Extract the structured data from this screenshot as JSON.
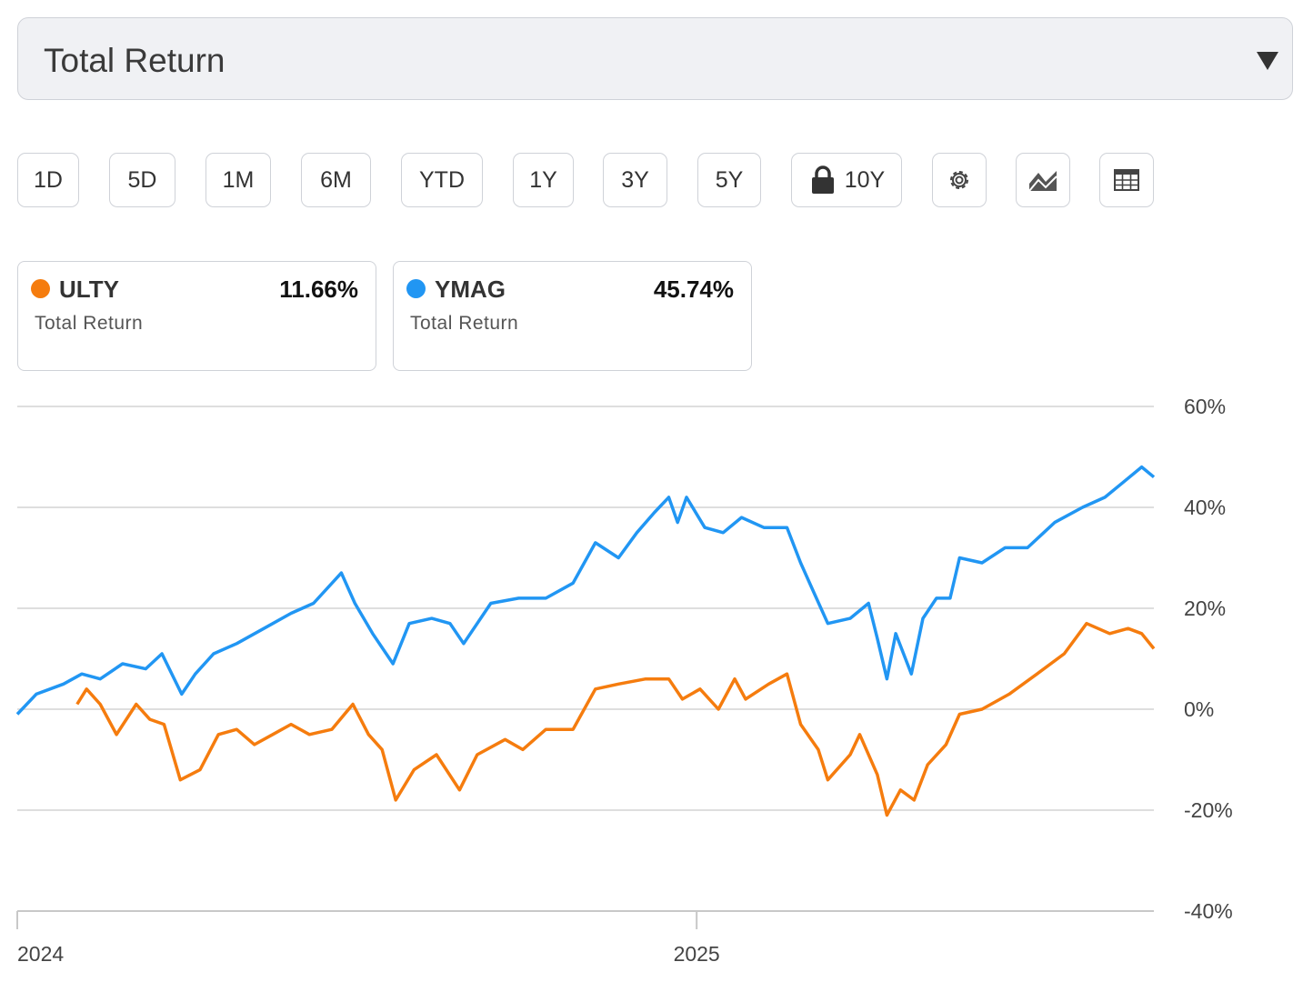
{
  "dropdown": "Total Return",
  "ranges": [
    "1D",
    "5D",
    "1M",
    "6M",
    "YTD",
    "1Y",
    "3Y",
    "5Y",
    "10Y"
  ],
  "chart_data": {
    "type": "line",
    "xlim": [
      2024,
      2025.673
    ],
    "xticks": [
      2024,
      2025
    ],
    "ylim": [
      -40,
      60
    ],
    "yticks": [
      {
        "value": 60,
        "label": "60%"
      },
      {
        "value": 40,
        "label": "40%"
      },
      {
        "value": 20,
        "label": "20%"
      },
      {
        "value": 0,
        "label": "0%"
      },
      {
        "value": -20,
        "label": "-20%"
      },
      {
        "value": -40,
        "label": "-40%"
      }
    ],
    "grid": true,
    "series": [
      {
        "name": "ULTY",
        "color": "#f57c0e",
        "subtitle": "Total Return",
        "summary": {
          "value": 11.66,
          "label": "11.66%"
        },
        "x": [
          2024.088,
          2024.102,
          2024.122,
          2024.146,
          2024.175,
          2024.195,
          2024.216,
          2024.24,
          2024.269,
          2024.296,
          2024.323,
          2024.349,
          2024.376,
          2024.403,
          2024.43,
          2024.463,
          2024.494,
          2024.517,
          2024.537,
          2024.557,
          2024.584,
          2024.617,
          2024.651,
          2024.677,
          2024.718,
          2024.744,
          2024.778,
          2024.818,
          2024.851,
          2024.885,
          2024.925,
          2024.959,
          2024.979,
          2025.005,
          2025.032,
          2025.056,
          2025.072,
          2025.106,
          2025.133,
          2025.153,
          2025.179,
          2025.193,
          2025.226,
          2025.24,
          2025.266,
          2025.28,
          2025.3,
          2025.32,
          2025.34,
          2025.367,
          2025.387,
          2025.42,
          2025.46,
          2025.501,
          2025.541,
          2025.574,
          2025.608,
          2025.635,
          2025.655,
          2025.673
        ],
        "values": [
          1,
          4,
          1,
          -5,
          1,
          -2,
          -3,
          -14,
          -12,
          -5,
          -4,
          -7,
          -5,
          -3,
          -5,
          -4,
          1,
          -5,
          -8,
          -18,
          -12,
          -9,
          -16,
          -9,
          -6,
          -8,
          -4,
          -4,
          4,
          5,
          6,
          6,
          2,
          4,
          0,
          6,
          2,
          5,
          7,
          -3,
          -8,
          -14,
          -9,
          -5,
          -13,
          -21,
          -16,
          -18,
          -11,
          -7,
          -1,
          0,
          3,
          7,
          11,
          17,
          15,
          16,
          15,
          12
        ]
      },
      {
        "name": "YMAG",
        "color": "#2196f3",
        "subtitle": "Total Return",
        "summary": {
          "value": 45.74,
          "label": "45.74%"
        },
        "x": [
          2024.0,
          2024.028,
          2024.068,
          2024.095,
          2024.122,
          2024.155,
          2024.189,
          2024.213,
          2024.242,
          2024.262,
          2024.289,
          2024.323,
          2024.363,
          2024.403,
          2024.436,
          2024.477,
          2024.497,
          2024.523,
          2024.553,
          2024.577,
          2024.61,
          2024.637,
          2024.657,
          2024.697,
          2024.738,
          2024.778,
          2024.818,
          2024.851,
          2024.885,
          2024.912,
          2024.938,
          2024.959,
          2024.972,
          2024.985,
          2025.012,
          2025.039,
          2025.066,
          2025.099,
          2025.133,
          2025.153,
          2025.173,
          2025.193,
          2025.226,
          2025.253,
          2025.266,
          2025.28,
          2025.293,
          2025.316,
          2025.333,
          2025.353,
          2025.373,
          2025.387,
          2025.42,
          2025.454,
          2025.487,
          2025.527,
          2025.568,
          2025.601,
          2025.628,
          2025.655,
          2025.673
        ],
        "values": [
          -1,
          3,
          5,
          7,
          6,
          9,
          8,
          11,
          3,
          7,
          11,
          13,
          16,
          19,
          21,
          27,
          21,
          15,
          9,
          17,
          18,
          17,
          13,
          21,
          22,
          22,
          25,
          33,
          30,
          35,
          39,
          42,
          37,
          42,
          36,
          35,
          38,
          36,
          36,
          29,
          23,
          17,
          18,
          21,
          14,
          6,
          15,
          7,
          18,
          22,
          22,
          30,
          29,
          32,
          32,
          37,
          40,
          42,
          45,
          48,
          46
        ]
      }
    ]
  }
}
